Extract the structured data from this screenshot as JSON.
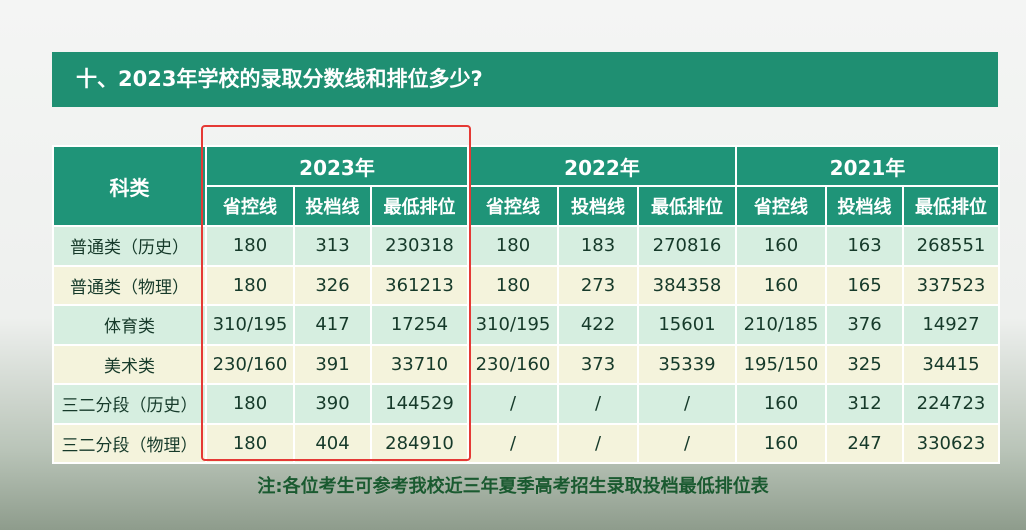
{
  "title": "十、2023年学校的录取分数线和排位多少?",
  "table": {
    "corner": "科类",
    "years": [
      "2023年",
      "2022年",
      "2021年"
    ],
    "subheaders": [
      "省控线",
      "投档线",
      "最低排位",
      "省控线",
      "投档线",
      "最低排位",
      "省控线",
      "投档线",
      "最低排位"
    ],
    "rows": [
      [
        "普通类（历史）",
        180,
        313,
        230318,
        180,
        183,
        270816,
        160,
        163,
        268551
      ],
      [
        "普通类（物理）",
        180,
        326,
        361213,
        180,
        273,
        384358,
        160,
        165,
        337523
      ],
      [
        "体育类",
        "310/195",
        417,
        17254,
        "310/195",
        422,
        15601,
        "210/185",
        376,
        14927
      ],
      [
        "美术类",
        "230/160",
        391,
        33710,
        "230/160",
        373,
        35339,
        "195/150",
        325,
        34415
      ],
      [
        "三二分段（历史）",
        180,
        390,
        144529,
        "/",
        "/",
        "/",
        160,
        312,
        224723
      ],
      [
        "三二分段（物理）",
        180,
        404,
        284910,
        "/",
        "/",
        "/",
        160,
        247,
        330623
      ]
    ]
  },
  "note": "注:各位考生可参考我校近三年夏季高考招生录取投档最低排位表"
}
